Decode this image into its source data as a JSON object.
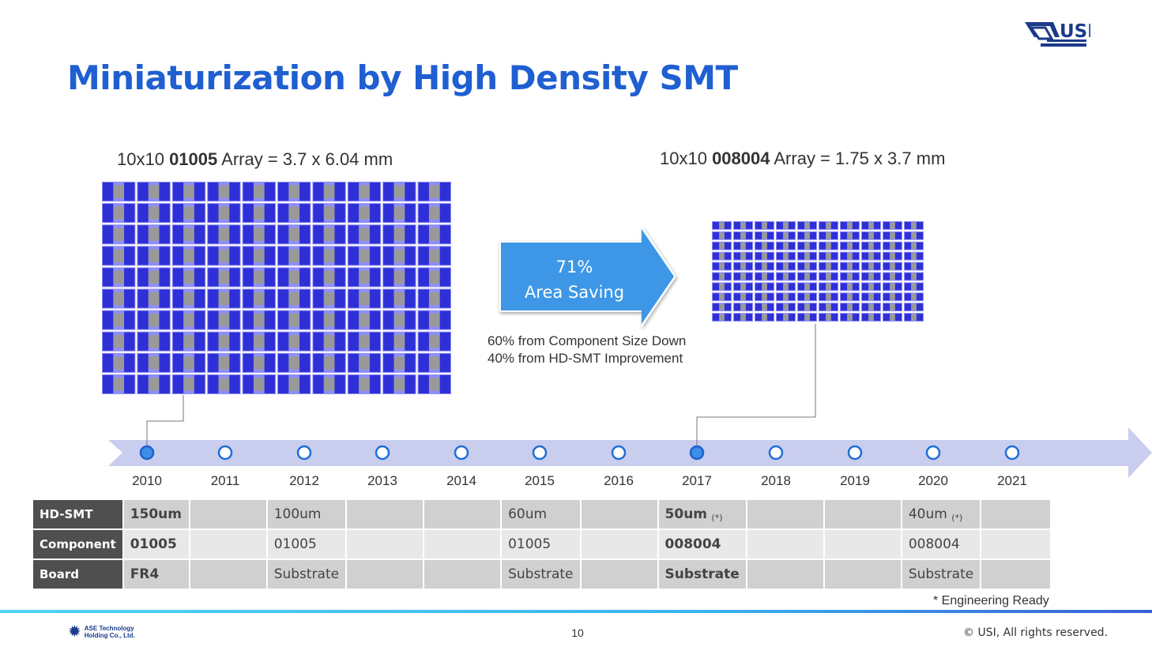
{
  "title": "Miniaturization by High Density SMT",
  "logo_text": "USI",
  "left_array": {
    "prefix": "10x10 ",
    "part": "01005",
    "suffix": " Array = 3.7 x  6.04 mm"
  },
  "right_array": {
    "prefix": "10x10 ",
    "part": "008004",
    "suffix": " Array = 1.75 x  3.7 mm"
  },
  "arrow": {
    "line1": "71%",
    "line2": "Area Saving",
    "color": "#3d97e6"
  },
  "notes": [
    "60% from Component Size Down",
    "40% from HD-SMT Improvement"
  ],
  "timeline": {
    "years": [
      "2010",
      "2011",
      "2012",
      "2013",
      "2014",
      "2015",
      "2016",
      "2017",
      "2018",
      "2019",
      "2020",
      "2021"
    ],
    "highlighted": [
      "2010",
      "2017"
    ]
  },
  "table": {
    "rows": [
      {
        "label": "HD-SMT",
        "cells": [
          {
            "t": "150um",
            "b": true
          },
          {
            "t": ""
          },
          {
            "t": "100um"
          },
          {
            "t": ""
          },
          {
            "t": ""
          },
          {
            "t": "60um"
          },
          {
            "t": ""
          },
          {
            "t": "50um",
            "b": true,
            "mark": "(*)"
          },
          {
            "t": ""
          },
          {
            "t": ""
          },
          {
            "t": "40um",
            "mark": "(*)"
          },
          {
            "t": ""
          }
        ]
      },
      {
        "label": "Component",
        "cells": [
          {
            "t": "01005",
            "b": true
          },
          {
            "t": ""
          },
          {
            "t": "01005"
          },
          {
            "t": ""
          },
          {
            "t": ""
          },
          {
            "t": "01005"
          },
          {
            "t": ""
          },
          {
            "t": "008004",
            "b": true
          },
          {
            "t": ""
          },
          {
            "t": ""
          },
          {
            "t": "008004"
          },
          {
            "t": ""
          }
        ]
      },
      {
        "label": "Board",
        "cells": [
          {
            "t": "FR4",
            "b": true
          },
          {
            "t": ""
          },
          {
            "t": "Substrate"
          },
          {
            "t": ""
          },
          {
            "t": ""
          },
          {
            "t": "Substrate"
          },
          {
            "t": ""
          },
          {
            "t": "Substrate",
            "b": true
          },
          {
            "t": ""
          },
          {
            "t": ""
          },
          {
            "t": "Substrate"
          },
          {
            "t": ""
          }
        ]
      }
    ]
  },
  "footnote": "* Engineering Ready",
  "footer": {
    "company": "ASE Technology Holding Co., Ltd.",
    "page": "10",
    "copyright": "© USI, All rights reserved."
  }
}
